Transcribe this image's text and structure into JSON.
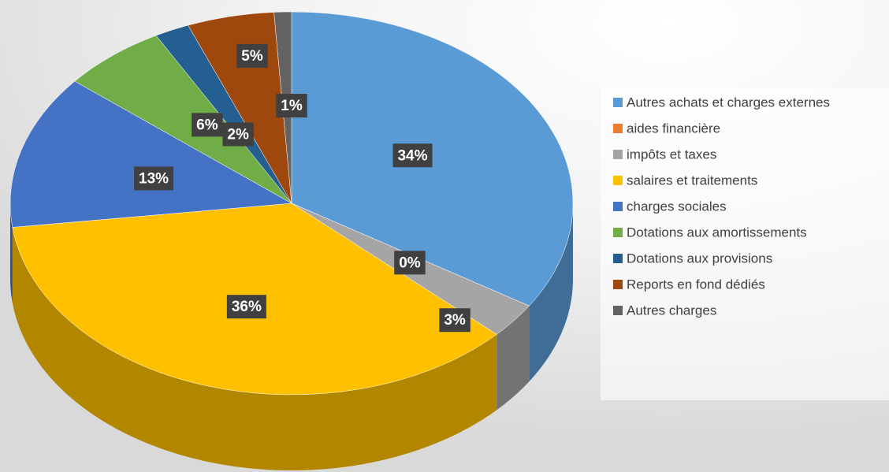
{
  "chart_data": {
    "type": "pie",
    "categories": [
      "Autres achats et charges externes",
      "aides financière",
      "impôts et taxes",
      "salaires et traitements",
      "charges sociales",
      "Dotations aux amortissements",
      "Dotations aux provisions",
      "Reports en fond dédiés",
      "Autres charges"
    ],
    "values": [
      34,
      0,
      3,
      36,
      13,
      6,
      2,
      5,
      1
    ],
    "value_labels": [
      "34%",
      "0%",
      "3%",
      "36%",
      "13%",
      "6%",
      "2%",
      "5%",
      "1%"
    ],
    "colors": [
      "#5b9bd5",
      "#ed7d31",
      "#a5a5a5",
      "#ffc000",
      "#4472c4",
      "#70ad47",
      "#255e91",
      "#9e480e",
      "#636363"
    ],
    "legend": "right"
  }
}
